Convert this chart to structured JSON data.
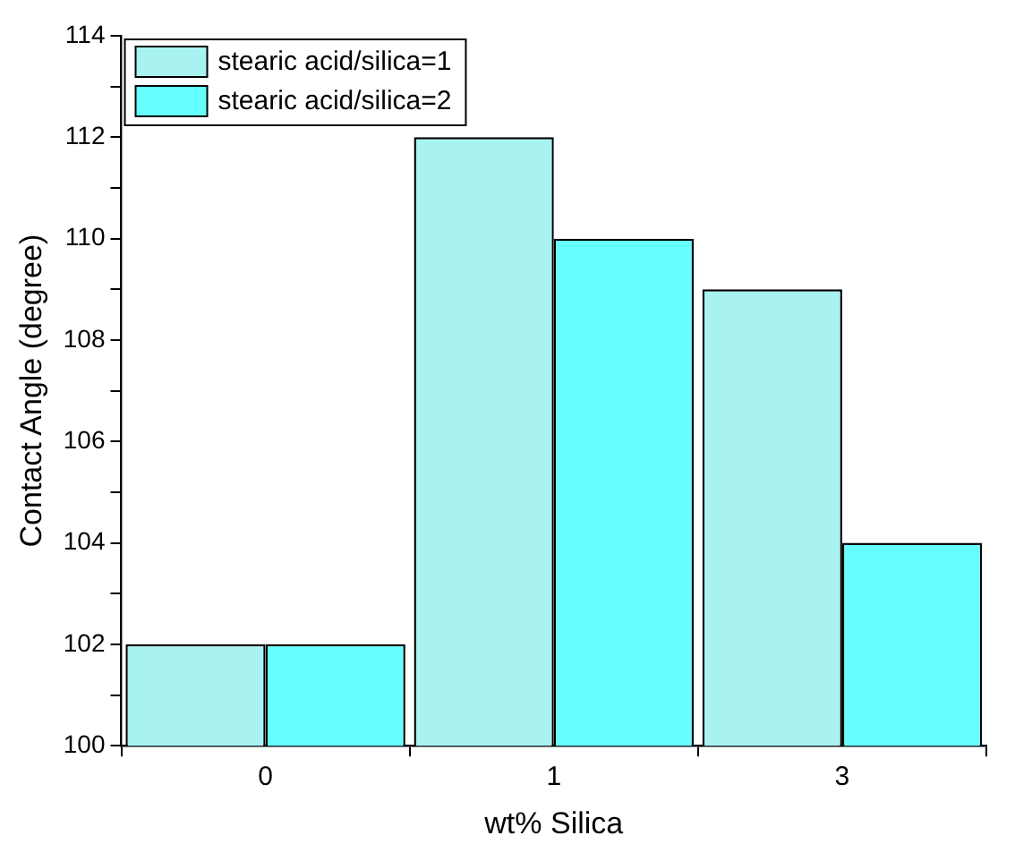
{
  "chart_data": {
    "type": "bar",
    "xlabel": "wt% Silica",
    "ylabel": "Contact Angle (degree)",
    "categories": [
      "0",
      "1",
      "3"
    ],
    "series": [
      {
        "name": "stearic acid/silica=1",
        "color": "#a8f2f2",
        "values": [
          102,
          112,
          109
        ]
      },
      {
        "name": "stearic acid/silica=2",
        "color": "#66ffff",
        "values": [
          102,
          110,
          104
        ]
      }
    ],
    "ylim": [
      100,
      114
    ],
    "yticks": [
      100,
      {
        "value": 101,
        "label": null
      },
      102,
      {
        "value": 103,
        "label": null
      },
      104,
      {
        "value": 105,
        "label": null
      },
      106,
      {
        "value": 107,
        "label": null
      },
      108,
      {
        "value": 109,
        "label": null
      },
      110,
      {
        "value": 111,
        "label": null
      },
      112,
      {
        "value": 113,
        "label": null
      },
      114
    ],
    "legend": "top left",
    "grid": false
  }
}
